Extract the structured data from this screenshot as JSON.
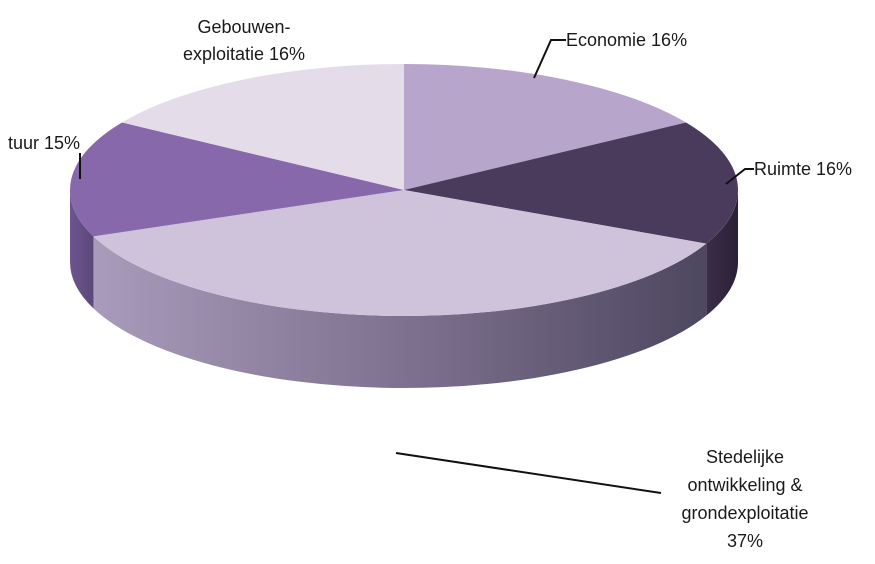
{
  "chart_data": {
    "type": "pie",
    "style": "3d",
    "legend": "none",
    "slices": [
      {
        "label": "Economie",
        "value": 16,
        "pct_label": "16%",
        "display": [
          "Economie 16%"
        ],
        "color": "#b7a5cc"
      },
      {
        "label": "Ruimte",
        "value": 16,
        "pct_label": "16%",
        "display": [
          "Ruimte 16%"
        ],
        "color": "#4a3a5c"
      },
      {
        "label": "Stedelijke ontwikkeling & grondexploitatie",
        "value": 37,
        "pct_label": "37%",
        "display": [
          "Stedelijke",
          "ontwikkeling &",
          "grondexploitatie",
          "37%"
        ],
        "color": "#cfc3dc"
      },
      {
        "label": "Cultuur",
        "value": 15,
        "pct_label": "15%",
        "display": [
          "tuur 15%"
        ],
        "color": "#8768ab"
      },
      {
        "label": "Gebouwen-exploitatie",
        "value": 16,
        "pct_label": "16%",
        "display": [
          "Gebouwen-",
          "exploitatie 16%"
        ],
        "color": "#e4dde9"
      }
    ]
  }
}
